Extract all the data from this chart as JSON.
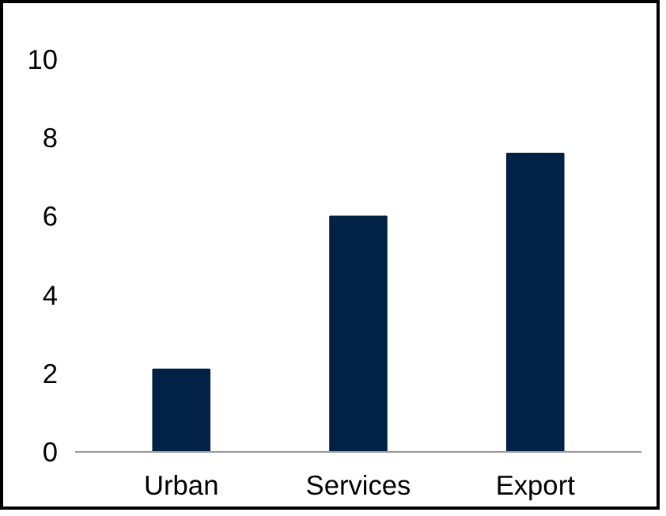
{
  "chart_data": {
    "type": "bar",
    "categories": [
      "Urban",
      "Services",
      "Export"
    ],
    "values": [
      2.1,
      6.0,
      7.6
    ],
    "color": "#012245",
    "ylim": [
      0,
      10
    ],
    "yticks": [
      0,
      2,
      4,
      6,
      8,
      10
    ],
    "grid": false
  }
}
